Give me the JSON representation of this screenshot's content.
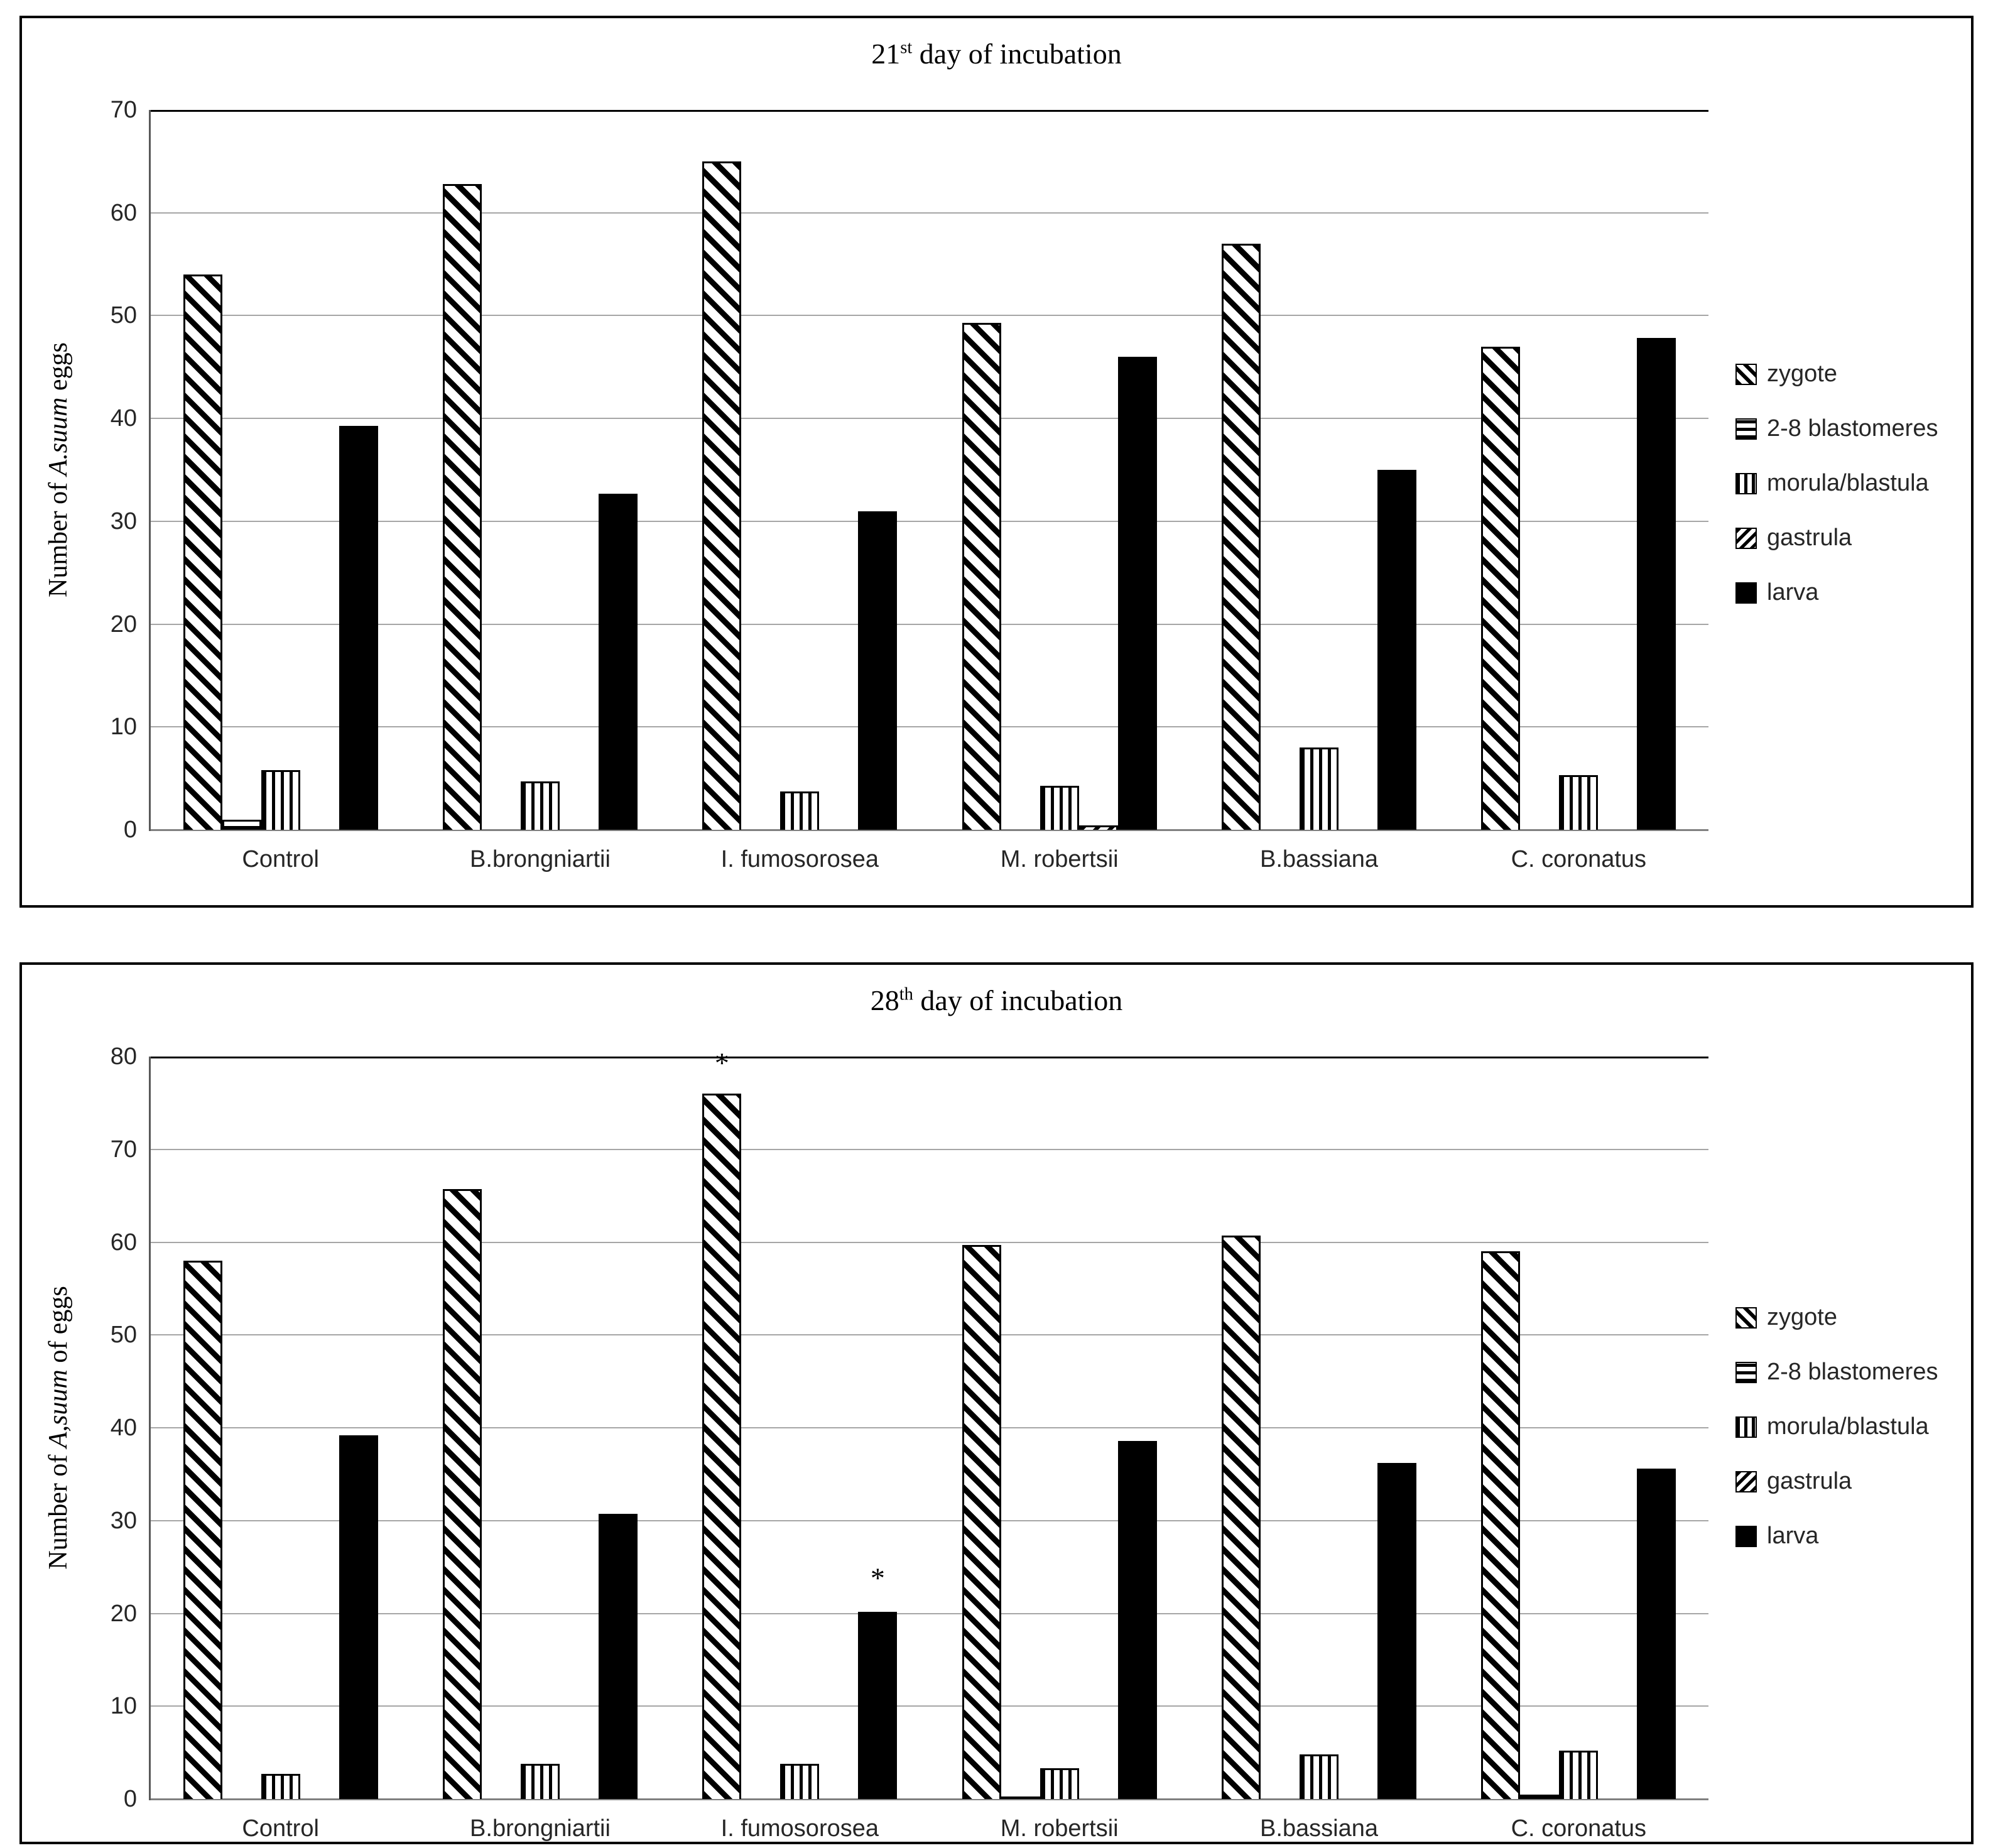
{
  "page": {
    "background": "#ffffff",
    "text_color": "#000000",
    "gridline_color": "#a6a6a6"
  },
  "chart_data": [
    {
      "type": "bar",
      "title": "21st day of incubation",
      "title_parts": {
        "num": "21",
        "sup": "st",
        "rest": " day of incubation"
      },
      "ylabel": "Number of A.suum eggs",
      "ylabel_parts": {
        "prefix": "Number of ",
        "italic": "A.suum",
        "suffix": " eggs"
      },
      "xlabel": "",
      "ylim": [
        0,
        70
      ],
      "yticks": [
        0,
        10,
        20,
        30,
        40,
        50,
        60,
        70
      ],
      "grid": true,
      "legend_position": "right",
      "categories": [
        "Control",
        "B.brongniartii",
        "I. fumosorosea",
        "M. robertsii",
        "B.bassiana",
        "C. coronatus"
      ],
      "series": [
        {
          "name": "zygote",
          "fill": "hatch-backslash",
          "values": [
            54,
            62.8,
            65,
            49.3,
            57,
            47
          ]
        },
        {
          "name": "2-8 blastomeres",
          "fill": "hatch-horizontal",
          "values": [
            1,
            0,
            0,
            0,
            0,
            0
          ]
        },
        {
          "name": "morula/blastula",
          "fill": "hatch-vertical",
          "values": [
            5.8,
            4.7,
            3.7,
            4.3,
            8,
            5.3
          ]
        },
        {
          "name": "gastrula",
          "fill": "hatch-slash",
          "values": [
            0,
            0,
            0,
            0.4,
            0,
            0
          ]
        },
        {
          "name": "larva",
          "fill": "solid-black",
          "values": [
            39.3,
            32.7,
            31,
            46,
            35,
            47.8
          ]
        }
      ],
      "annotations": []
    },
    {
      "type": "bar",
      "title": "28th day of incubation",
      "title_parts": {
        "num": "28",
        "sup": "th",
        "rest": " day of incubation"
      },
      "ylabel": "Number of A,suum of eggs",
      "ylabel_parts": {
        "prefix": "Number of ",
        "italic": "A,suum",
        "suffix": " of eggs"
      },
      "xlabel": "",
      "ylim": [
        0,
        80
      ],
      "yticks": [
        0,
        10,
        20,
        30,
        40,
        50,
        60,
        70,
        80
      ],
      "grid": true,
      "legend_position": "right",
      "categories": [
        "Control",
        "B.brongniartii",
        "I. fumosorosea",
        "M. robertsii",
        "B.bassiana",
        "C. coronatus"
      ],
      "series": [
        {
          "name": "zygote",
          "fill": "hatch-backslash",
          "values": [
            58,
            65.7,
            76,
            59.7,
            60.7,
            59
          ]
        },
        {
          "name": "2-8 blastomeres",
          "fill": "hatch-horizontal",
          "values": [
            0,
            0,
            0,
            0.3,
            0,
            0.5
          ]
        },
        {
          "name": "morula/blastula",
          "fill": "hatch-vertical",
          "values": [
            2.7,
            3.8,
            3.8,
            3.3,
            4.8,
            5.2
          ]
        },
        {
          "name": "gastrula",
          "fill": "hatch-slash",
          "values": [
            0,
            0,
            0,
            0,
            0,
            0
          ]
        },
        {
          "name": "larva",
          "fill": "solid-black",
          "values": [
            39.2,
            30.7,
            20.2,
            38.6,
            36.2,
            35.6
          ]
        }
      ],
      "annotations": [
        {
          "category_index": 2,
          "series_index": 0,
          "y": 79.3,
          "text": "*"
        },
        {
          "category_index": 2,
          "series_index": 4,
          "y": 23.8,
          "text": "*"
        }
      ]
    }
  ]
}
